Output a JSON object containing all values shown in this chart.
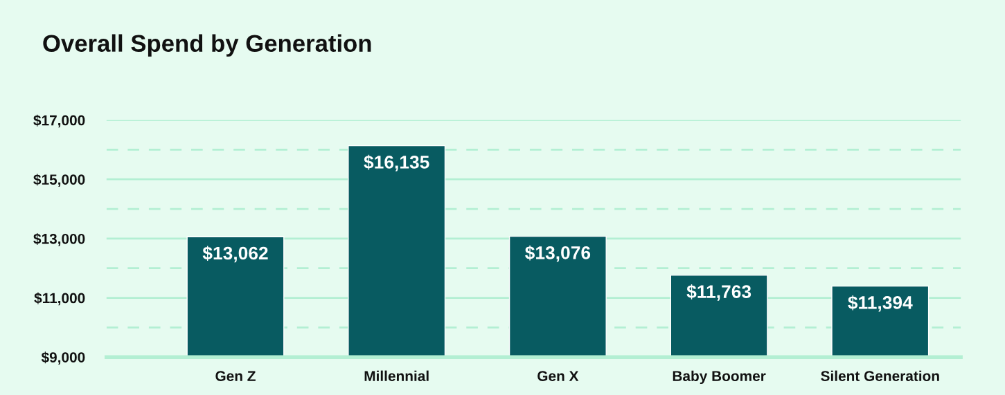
{
  "chart_data": {
    "type": "bar",
    "title": "Overall Spend by Generation",
    "categories": [
      "Gen Z",
      "Millennial",
      "Gen X",
      "Baby Boomer",
      "Silent Generation"
    ],
    "values": [
      13062,
      16135,
      13076,
      11763,
      11394
    ],
    "value_labels": [
      "$13,062",
      "$16,135",
      "$13,076",
      "$11,763",
      "$11,394"
    ],
    "color": "#085b61",
    "ylim": [
      9000,
      17000
    ],
    "yticks": [
      {
        "value": 9000,
        "label": "$9,000"
      },
      {
        "value": 10000,
        "label": null
      },
      {
        "value": 11000,
        "label": "$11,000"
      },
      {
        "value": 12000,
        "label": null
      },
      {
        "value": 13000,
        "label": "$13,000"
      },
      {
        "value": 14000,
        "label": null
      },
      {
        "value": 15000,
        "label": "$15,000"
      },
      {
        "value": 16000,
        "label": null
      },
      {
        "value": 17000,
        "label": "$17,000"
      }
    ],
    "grid": "y"
  }
}
